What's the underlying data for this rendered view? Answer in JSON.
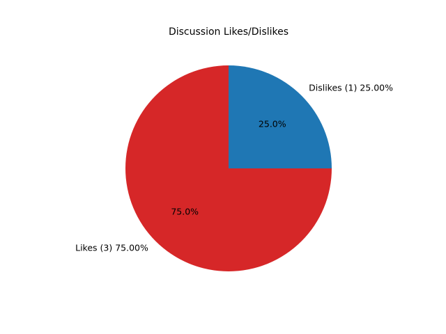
{
  "chart_data": {
    "type": "pie",
    "title": "Discussion Likes/Dislikes",
    "slices": [
      {
        "label": "Dislikes (1) 25.00%",
        "value": 1,
        "percent_label": "25.0%",
        "color": "#1f77b4"
      },
      {
        "label": "Likes (3) 75.00%",
        "value": 3,
        "percent_label": "75.0%",
        "color": "#d62728"
      }
    ],
    "start_angle_deg": 0,
    "direction": "counterclockwise",
    "legend": false
  }
}
